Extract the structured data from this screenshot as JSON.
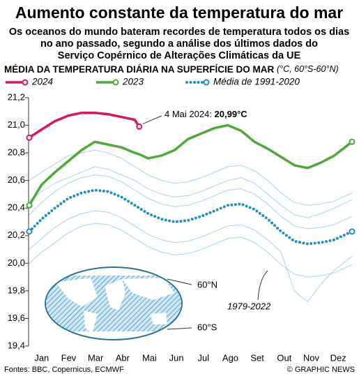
{
  "chart_data": {
    "type": "line",
    "title": "Aumento constante da temperatura do mar",
    "subtitle": [
      "Os oceanos do mundo bateram recordes de temperatura todos os dias",
      "no ano passado, segundo a análise dos últimos dados do",
      "Serviço Copérnico de Alterações Climáticas da UE"
    ],
    "chart_title": "MÉDIA DA TEMPERATURA DIÁRIA NA SUPERFÍCIE DO MAR",
    "unit": "(°C, 60°S-60°N)",
    "categories": [
      "Jan",
      "Fev",
      "Mar",
      "Abr",
      "Mai",
      "Jun",
      "Jul",
      "Ago",
      "Set",
      "Out",
      "Nov",
      "Dez"
    ],
    "x": [
      1,
      15,
      30,
      45,
      60,
      75,
      90,
      105,
      120,
      125,
      135,
      150,
      165,
      180,
      195,
      210,
      225,
      240,
      255,
      270,
      285,
      300,
      315,
      330,
      345,
      365
    ],
    "xlim": [
      1,
      365
    ],
    "ylim": [
      19.4,
      21.2
    ],
    "yticks": [
      {
        "value": 19.4,
        "label": "19,4"
      },
      {
        "value": 19.6,
        "label": "19,6"
      },
      {
        "value": 19.8,
        "label": "19,8"
      },
      {
        "value": 20.0,
        "label": "20,0"
      },
      {
        "value": 20.2,
        "label": "20,2"
      },
      {
        "value": 20.4,
        "label": "20,4"
      },
      {
        "value": 20.6,
        "label": "20,6"
      },
      {
        "value": 20.8,
        "label": "20,8"
      },
      {
        "value": 21.0,
        "label": "21,0"
      },
      {
        "value": 21.2,
        "label": "21,2"
      }
    ],
    "series": [
      {
        "name": "2024",
        "color": "#d6185a",
        "values": [
          20.91,
          20.97,
          21.03,
          21.07,
          21.09,
          21.09,
          21.08,
          21.06,
          21.04,
          20.99,
          null,
          null,
          null,
          null,
          null,
          null,
          null,
          null,
          null,
          null,
          null,
          null,
          null,
          null,
          null,
          null
        ]
      },
      {
        "name": "2023",
        "color": "#4daa3a",
        "values": [
          20.42,
          20.57,
          20.66,
          20.74,
          20.82,
          20.88,
          20.86,
          20.84,
          20.8,
          20.79,
          20.76,
          20.78,
          20.82,
          20.9,
          20.94,
          20.98,
          21.0,
          20.96,
          20.88,
          20.83,
          20.77,
          20.71,
          20.69,
          20.73,
          20.78,
          20.88
        ]
      },
      {
        "name": "Média de 1991-2020",
        "color": "#1e8fc8",
        "values": [
          20.23,
          20.32,
          20.4,
          20.47,
          20.51,
          20.53,
          20.52,
          20.48,
          20.42,
          20.4,
          20.36,
          20.32,
          20.3,
          20.31,
          20.34,
          20.38,
          20.42,
          20.43,
          20.39,
          20.32,
          20.23,
          20.16,
          20.14,
          20.15,
          20.17,
          20.23
        ]
      }
    ],
    "background": {
      "label": "1979-2022",
      "color": "#a9d3ea",
      "lines": [
        [
          20.0,
          20.08,
          20.15,
          20.22,
          20.27,
          20.29,
          20.28,
          20.24,
          20.18,
          20.16,
          20.12,
          20.08,
          20.06,
          20.07,
          20.1,
          20.14,
          20.18,
          20.19,
          20.15,
          20.08,
          19.99,
          19.92,
          19.9,
          19.91,
          19.93,
          19.99
        ],
        [
          20.6,
          20.66,
          20.72,
          20.78,
          20.8,
          20.82,
          20.8,
          20.76,
          20.7,
          20.68,
          20.64,
          20.6,
          20.58,
          20.59,
          20.62,
          20.66,
          20.7,
          20.71,
          20.67,
          20.6,
          20.51,
          20.44,
          20.42,
          20.43,
          20.45,
          20.51
        ],
        [
          20.35,
          20.44,
          20.52,
          20.58,
          20.62,
          20.64,
          20.63,
          20.59,
          20.53,
          20.51,
          20.47,
          20.43,
          20.41,
          20.42,
          20.45,
          20.49,
          20.53,
          20.54,
          20.5,
          20.43,
          20.34,
          20.27,
          20.25,
          20.26,
          20.28,
          20.34
        ],
        [
          20.1,
          20.18,
          20.26,
          20.32,
          20.36,
          20.38,
          20.37,
          20.33,
          20.27,
          20.25,
          20.21,
          20.17,
          20.15,
          20.16,
          20.19,
          20.23,
          20.27,
          20.28,
          20.24,
          20.17,
          20.08,
          19.8,
          19.72,
          19.85,
          19.95,
          20.05
        ],
        [
          20.45,
          20.52,
          20.58,
          20.62,
          20.66,
          20.7,
          20.68,
          20.64,
          20.6,
          20.58,
          20.54,
          20.5,
          20.48,
          20.49,
          20.52,
          20.56,
          20.6,
          20.62,
          20.58,
          20.5,
          20.42,
          20.35,
          20.33,
          20.36,
          20.4,
          20.46
        ]
      ]
    },
    "annotation": {
      "prefix": "4 Mai 2024: ",
      "value": "20,99°C"
    },
    "map_labels": [
      "60°N",
      "60°S"
    ],
    "source": "Fontes: BBC, Copernicus, ECMWF",
    "credit": "© GRAPHIC NEWS"
  }
}
